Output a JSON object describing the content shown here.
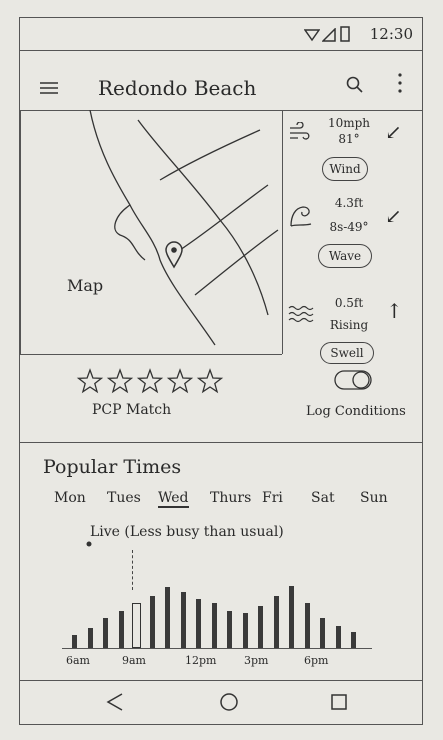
{
  "status_bar": {
    "time": "12:30"
  },
  "app_bar": {
    "title": "Redondo Beach"
  },
  "map": {
    "label": "Map"
  },
  "conditions": {
    "wind": {
      "line1": "10mph",
      "line2": "81°",
      "label": "Wind",
      "arrow": "↙"
    },
    "wave": {
      "line1": "4.3ft",
      "line2": "8s-49°",
      "label": "Wave",
      "arrow": "↙"
    },
    "swell": {
      "line1": "0.5ft",
      "line2": "Rising",
      "label": "Swell",
      "arrow": "↑"
    }
  },
  "rating": {
    "label": "PCP Match",
    "stars": 5
  },
  "log": {
    "label": "Log Conditions"
  },
  "popular": {
    "title": "Popular Times",
    "days": [
      "Mon",
      "Tues",
      "Wed",
      "Thurs",
      "Fri",
      "Sat",
      "Sun"
    ],
    "selected_day": "Wed",
    "live_text": "Live (Less busy than usual)",
    "times": [
      "6am",
      "9am",
      "12pm",
      "3pm",
      "6pm"
    ],
    "bar_levels": [
      0.18,
      0.28,
      0.42,
      0.52,
      0.62,
      0.72,
      0.85,
      0.78,
      0.68,
      0.62,
      0.52,
      0.48,
      0.58,
      0.72,
      0.86,
      0.62,
      0.42,
      0.3,
      0.22
    ],
    "highlight_index": 4,
    "live_level": 0.42
  }
}
